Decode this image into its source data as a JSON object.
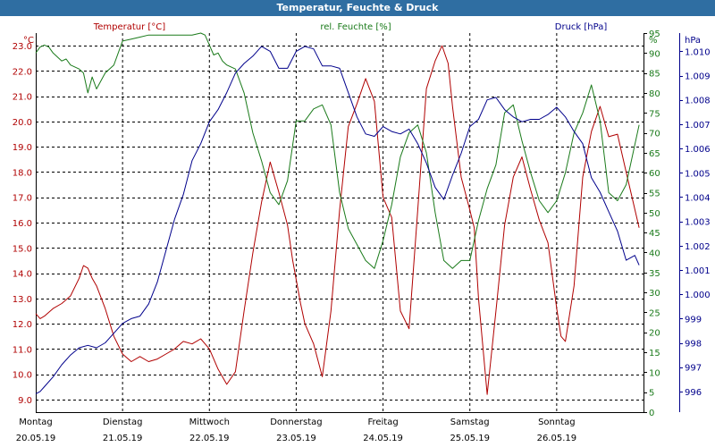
{
  "window": {
    "title": "Temperatur, Feuchte & Druck"
  },
  "colors": {
    "temperature": "#b00000",
    "humidity": "#1a7a1a",
    "pressure": "#00008b",
    "grid": "#000000",
    "titlebar": "#2f6ea2"
  },
  "chart_data": {
    "type": "line",
    "title": "Temperatur, Feuchte & Druck",
    "days": [
      {
        "name": "Montag",
        "date": "20.05.19"
      },
      {
        "name": "Dienstag",
        "date": "21.05.19"
      },
      {
        "name": "Mittwoch",
        "date": "22.05.19"
      },
      {
        "name": "Donnerstag",
        "date": "23.05.19"
      },
      {
        "name": "Freitag",
        "date": "24.05.19"
      },
      {
        "name": "Samstag",
        "date": "25.05.19"
      },
      {
        "name": "Sonntag",
        "date": "26.05.19"
      }
    ],
    "x_range": [
      0,
      7
    ],
    "axes": {
      "temperature": {
        "label": "Temperatur [°C]",
        "unit": "°C",
        "range": [
          8.5,
          23.5
        ],
        "ticks": [
          "9.0",
          "10.0",
          "11.0",
          "12.0",
          "13.0",
          "14.0",
          "15.0",
          "16.0",
          "17.0",
          "18.0",
          "19.0",
          "20.0",
          "21.0",
          "22.0",
          "23.0"
        ]
      },
      "humidity": {
        "label": "rel. Feuchte [%]",
        "unit": "%",
        "range": [
          0,
          95
        ],
        "ticks": [
          "0",
          "5",
          "10",
          "15",
          "20",
          "25",
          "30",
          "35",
          "40",
          "45",
          "50",
          "55",
          "60",
          "65",
          "70",
          "75",
          "80",
          "85",
          "90",
          "95"
        ]
      },
      "pressure": {
        "label": "Druck [hPa]",
        "unit": "hPa",
        "range": [
          995.15,
          1010.75
        ],
        "ticks": [
          "996",
          "997",
          "998",
          "999",
          "1.000",
          "1.001",
          "1.002",
          "1.003",
          "1.004",
          "1.005",
          "1.006",
          "1.007",
          "1.008",
          "1.009",
          "1.010"
        ]
      }
    },
    "series": [
      {
        "name": "Temperatur",
        "axis": "temperature",
        "x": [
          0,
          0.05,
          0.1,
          0.2,
          0.3,
          0.4,
          0.5,
          0.55,
          0.6,
          0.65,
          0.7,
          0.8,
          0.9,
          1,
          1.1,
          1.2,
          1.3,
          1.4,
          1.5,
          1.6,
          1.7,
          1.8,
          1.9,
          2,
          2.1,
          2.2,
          2.3,
          2.4,
          2.5,
          2.6,
          2.7,
          2.8,
          2.9,
          2.96,
          3.05,
          3.1,
          3.2,
          3.3,
          3.4,
          3.5,
          3.6,
          3.7,
          3.8,
          3.9,
          4,
          4.1,
          4.2,
          4.3,
          4.4,
          4.5,
          4.6,
          4.68,
          4.75,
          4.8,
          4.9,
          5,
          5.05,
          5.1,
          5.2,
          5.3,
          5.4,
          5.5,
          5.6,
          5.7,
          5.8,
          5.9,
          6,
          6.05,
          6.1,
          6.2,
          6.3,
          6.4,
          6.5,
          6.6,
          6.7,
          6.8,
          6.95
        ],
        "values": [
          12.4,
          12.2,
          12.3,
          12.6,
          12.8,
          13.1,
          13.8,
          14.3,
          14.2,
          13.8,
          13.5,
          12.6,
          11.5,
          10.8,
          10.5,
          10.7,
          10.5,
          10.6,
          10.8,
          11,
          11.3,
          11.2,
          11.4,
          11,
          10.2,
          9.6,
          10.1,
          12.5,
          14.8,
          16.8,
          18.4,
          17.2,
          15.9,
          14.5,
          12.8,
          12,
          11.2,
          9.9,
          12.5,
          16.5,
          19.8,
          20.7,
          21.7,
          20.8,
          17,
          16.2,
          12.5,
          11.8,
          16.5,
          21.3,
          22.4,
          23,
          22.3,
          20.6,
          17.8,
          16.5,
          15.8,
          13,
          9.2,
          12.5,
          15.9,
          17.8,
          18.6,
          17.3,
          16.1,
          15.2,
          12.6,
          11.5,
          11.3,
          13.5,
          17.8,
          19.6,
          20.6,
          19.4,
          19.5,
          18,
          15.8
        ]
      },
      {
        "name": "rel. Feuchte",
        "axis": "humidity",
        "x": [
          0,
          0.05,
          0.1,
          0.15,
          0.2,
          0.3,
          0.35,
          0.4,
          0.5,
          0.55,
          0.6,
          0.65,
          0.7,
          0.8,
          0.9,
          1,
          1.1,
          1.2,
          1.3,
          1.4,
          1.5,
          1.6,
          1.7,
          1.8,
          1.9,
          1.95,
          2,
          2.05,
          2.1,
          2.15,
          2.2,
          2.3,
          2.4,
          2.5,
          2.6,
          2.7,
          2.8,
          2.9,
          3,
          3.1,
          3.2,
          3.3,
          3.4,
          3.5,
          3.6,
          3.7,
          3.8,
          3.9,
          4,
          4.1,
          4.2,
          4.3,
          4.4,
          4.5,
          4.6,
          4.7,
          4.8,
          4.9,
          5,
          5.1,
          5.2,
          5.3,
          5.4,
          5.5,
          5.6,
          5.7,
          5.8,
          5.9,
          6,
          6.1,
          6.2,
          6.3,
          6.4,
          6.5,
          6.6,
          6.7,
          6.8,
          6.95
        ],
        "values": [
          90,
          91.5,
          92,
          91.5,
          90,
          88,
          88.5,
          87,
          86,
          85,
          80,
          84,
          81,
          85,
          87,
          93,
          93.5,
          94,
          94.5,
          94.5,
          94.5,
          94.5,
          94.5,
          94.5,
          95,
          94.5,
          92,
          89.5,
          90,
          88,
          87,
          86,
          80,
          70,
          63,
          55,
          52,
          58,
          73,
          73,
          76,
          77,
          72,
          55,
          46,
          42,
          38,
          36,
          43,
          52,
          64,
          70,
          72,
          65,
          50,
          38,
          36,
          38,
          38,
          48,
          56,
          62,
          75,
          77,
          68,
          60,
          53,
          50,
          53,
          60,
          70,
          75,
          82,
          73,
          55,
          53,
          57,
          72
        ]
      },
      {
        "name": "Druck",
        "axis": "pressure",
        "x": [
          0,
          0.05,
          0.1,
          0.2,
          0.3,
          0.4,
          0.5,
          0.6,
          0.7,
          0.8,
          0.9,
          1,
          1.05,
          1.1,
          1.2,
          1.3,
          1.4,
          1.5,
          1.6,
          1.7,
          1.8,
          1.9,
          2,
          2.1,
          2.2,
          2.3,
          2.4,
          2.5,
          2.6,
          2.7,
          2.8,
          2.9,
          3,
          3.1,
          3.2,
          3.3,
          3.4,
          3.5,
          3.6,
          3.7,
          3.8,
          3.9,
          4,
          4.1,
          4.2,
          4.3,
          4.4,
          4.5,
          4.6,
          4.7,
          4.8,
          4.9,
          5,
          5.1,
          5.2,
          5.3,
          5.4,
          5.5,
          5.6,
          5.7,
          5.8,
          5.9,
          6,
          6.1,
          6.2,
          6.3,
          6.4,
          6.5,
          6.6,
          6.7,
          6.8,
          6.9,
          6.95
        ],
        "values": [
          995.9,
          996,
          996.2,
          996.6,
          997.1,
          997.5,
          997.8,
          997.9,
          997.8,
          998,
          998.4,
          998.8,
          998.9,
          999,
          999.1,
          999.6,
          1000.5,
          1001.8,
          1003.1,
          1004.1,
          1005.5,
          1006.2,
          1007.1,
          1007.6,
          1008.3,
          1009.1,
          1009.5,
          1009.8,
          1010.2,
          1010,
          1009.3,
          1009.3,
          1010,
          1010.2,
          1010.1,
          1009.4,
          1009.4,
          1009.3,
          1008.3,
          1007.3,
          1006.6,
          1006.5,
          1006.9,
          1006.7,
          1006.6,
          1006.8,
          1006.2,
          1005.4,
          1004.4,
          1003.9,
          1004.9,
          1005.8,
          1006.9,
          1007.2,
          1008.0,
          1008.1,
          1007.6,
          1007.3,
          1007.1,
          1007.2,
          1007.2,
          1007.4,
          1007.7,
          1007.3,
          1006.7,
          1006.2,
          1004.8,
          1004.2,
          1003.4,
          1002.6,
          1001.4,
          1001.6,
          1001.2
        ]
      }
    ]
  }
}
